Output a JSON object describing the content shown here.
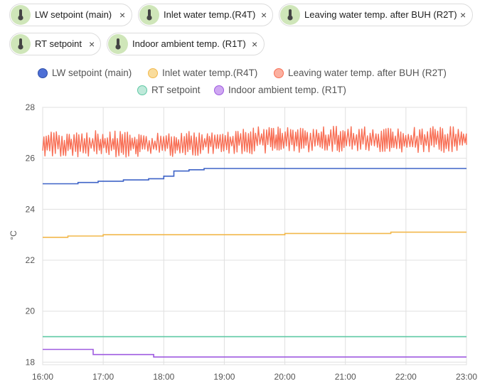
{
  "chips": [
    {
      "label": "LW setpoint (main)",
      "icon": "thermometer-icon"
    },
    {
      "label": "Inlet water temp.(R4T)",
      "icon": "thermometer-icon"
    },
    {
      "label": "Leaving water temp. after BUH (R2T)",
      "icon": "thermometer-icon"
    },
    {
      "label": "RT setpoint",
      "icon": "thermometer-icon"
    },
    {
      "label": "Indoor ambient temp. (R1T)",
      "icon": "thermometer-icon"
    }
  ],
  "chip_close_glyph": "×",
  "colors": {
    "chip_icon_bg": "#cfe6b9",
    "lw_setpoint": "#3e63c7",
    "inlet_water": "#f2b84b",
    "leaving_water": "#f86e54",
    "rt_setpoint": "#5fc9a4",
    "indoor_ambient": "#9f5be0",
    "grid": "#e0e0e0"
  },
  "chart_data": {
    "type": "line",
    "title": "",
    "xlabel": "",
    "ylabel": "°C",
    "x_ticks": [
      "16:00",
      "17:00",
      "18:00",
      "19:00",
      "20:00",
      "21:00",
      "22:00",
      "23:00"
    ],
    "y_ticks": [
      "18",
      "20",
      "22",
      "24",
      "26",
      "28"
    ],
    "xlim": [
      "16:00",
      "23:00"
    ],
    "ylim": [
      17.9,
      28.0
    ],
    "grid": true,
    "legend_placement": "top",
    "series": [
      {
        "name": "LW setpoint (main)",
        "color": "#3e63c7",
        "style": "step",
        "points": [
          [
            "16:00",
            25.0
          ],
          [
            "16:35",
            25.0
          ],
          [
            "16:35",
            25.05
          ],
          [
            "16:55",
            25.05
          ],
          [
            "16:55",
            25.1
          ],
          [
            "17:20",
            25.1
          ],
          [
            "17:20",
            25.15
          ],
          [
            "17:45",
            25.15
          ],
          [
            "17:45",
            25.2
          ],
          [
            "18:00",
            25.2
          ],
          [
            "18:00",
            25.3
          ],
          [
            "18:10",
            25.3
          ],
          [
            "18:10",
            25.5
          ],
          [
            "18:25",
            25.5
          ],
          [
            "18:25",
            25.55
          ],
          [
            "18:40",
            25.55
          ],
          [
            "18:40",
            25.6
          ],
          [
            "23:00",
            25.6
          ]
        ]
      },
      {
        "name": "Inlet water temp.(R4T)",
        "color": "#f2b84b",
        "style": "step",
        "points": [
          [
            "16:00",
            22.9
          ],
          [
            "16:25",
            22.9
          ],
          [
            "16:25",
            22.95
          ],
          [
            "17:00",
            22.95
          ],
          [
            "17:00",
            23.0
          ],
          [
            "20:00",
            23.0
          ],
          [
            "20:00",
            23.05
          ],
          [
            "21:45",
            23.05
          ],
          [
            "21:45",
            23.1
          ],
          [
            "23:00",
            23.1
          ]
        ]
      },
      {
        "name": "Leaving water temp. after BUH (R2T)",
        "color": "#f86e54",
        "style": "oscillating",
        "low": [
          [
            "16:00",
            26.0
          ],
          [
            "17:00",
            26.05
          ],
          [
            "18:00",
            26.05
          ],
          [
            "19:00",
            26.15
          ],
          [
            "20:00",
            26.2
          ],
          [
            "21:00",
            26.25
          ],
          [
            "22:00",
            26.2
          ],
          [
            "23:00",
            26.25
          ]
        ],
        "high": [
          [
            "16:00",
            27.05
          ],
          [
            "17:00",
            27.1
          ],
          [
            "18:00",
            27.0
          ],
          [
            "19:00",
            27.15
          ],
          [
            "20:00",
            27.3
          ],
          [
            "21:00",
            27.25
          ],
          [
            "22:00",
            27.2
          ],
          [
            "23:00",
            27.3
          ]
        ]
      },
      {
        "name": "RT setpoint",
        "color": "#5fc9a4",
        "style": "step",
        "points": [
          [
            "16:00",
            19.0
          ],
          [
            "23:00",
            19.0
          ]
        ]
      },
      {
        "name": "Indoor ambient temp. (R1T)",
        "color": "#9f5be0",
        "style": "step",
        "points": [
          [
            "16:00",
            18.5
          ],
          [
            "16:50",
            18.5
          ],
          [
            "16:50",
            18.3
          ],
          [
            "17:50",
            18.3
          ],
          [
            "17:50",
            18.2
          ],
          [
            "23:00",
            18.2
          ]
        ]
      }
    ]
  }
}
